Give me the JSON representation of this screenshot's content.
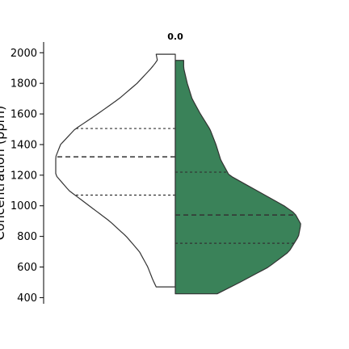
{
  "chart_data": {
    "type": "violin",
    "split": true,
    "categories": [
      "0.0"
    ],
    "ylabel": "Concentration (ppm)",
    "ylim": [
      360,
      2070
    ],
    "yticks": [
      400,
      600,
      800,
      1000,
      1200,
      1400,
      1600,
      1800,
      2000
    ],
    "colors": {
      "left": "#ffffff",
      "right": "#3a8259",
      "outline": "#333333"
    },
    "series": [
      {
        "side": "left",
        "range": [
          470,
          1990
        ],
        "quartiles": {
          "q1": 1070,
          "median": 1320,
          "q3": 1505
        },
        "density": [
          [
            470,
            0.16
          ],
          [
            520,
            0.19
          ],
          [
            600,
            0.23
          ],
          [
            700,
            0.3
          ],
          [
            800,
            0.41
          ],
          [
            900,
            0.55
          ],
          [
            1000,
            0.72
          ],
          [
            1100,
            0.89
          ],
          [
            1200,
            1.0
          ],
          [
            1320,
            1.0
          ],
          [
            1400,
            0.96
          ],
          [
            1500,
            0.84
          ],
          [
            1600,
            0.65
          ],
          [
            1700,
            0.47
          ],
          [
            1800,
            0.32
          ],
          [
            1900,
            0.2
          ],
          [
            1950,
            0.15
          ],
          [
            1990,
            0.16
          ]
        ]
      },
      {
        "side": "right",
        "range": [
          425,
          1950
        ],
        "quartiles": {
          "q1": 755,
          "median": 940,
          "q3": 1220
        },
        "density": [
          [
            425,
            0.35
          ],
          [
            500,
            0.54
          ],
          [
            600,
            0.78
          ],
          [
            700,
            0.95
          ],
          [
            800,
            1.03
          ],
          [
            880,
            1.05
          ],
          [
            950,
            1.0
          ],
          [
            1000,
            0.91
          ],
          [
            1100,
            0.68
          ],
          [
            1200,
            0.45
          ],
          [
            1300,
            0.38
          ],
          [
            1400,
            0.34
          ],
          [
            1500,
            0.29
          ],
          [
            1600,
            0.21
          ],
          [
            1700,
            0.14
          ],
          [
            1800,
            0.1
          ],
          [
            1900,
            0.07
          ],
          [
            1950,
            0.07
          ]
        ]
      }
    ]
  }
}
